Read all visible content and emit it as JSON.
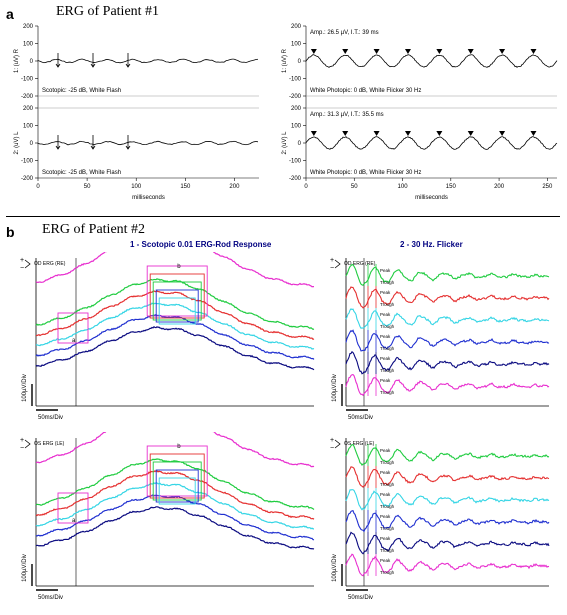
{
  "panel_a": {
    "letter": "a",
    "title": "ERG of Patient #1",
    "title_fontsize": 14,
    "letter_fontsize": 14,
    "left_plots": {
      "xlim": [
        0,
        225
      ],
      "ylim": [
        -200,
        200
      ],
      "xtick_step": 50,
      "ytick_step": 100,
      "xlabel": "milliseconds",
      "ylabels": [
        "1: (uV) R",
        "2: (uV) L"
      ],
      "legend_top": "Scotopic: -25 dB, White Flash",
      "legend_bottom": "Scotopic: -25 dB, White Flash",
      "trace_color": "#000000",
      "grid_color": "#c0c0c0",
      "background": "#ffffff",
      "axis_fontsize": 6,
      "label_fontsize": 6
    },
    "right_plots": {
      "xlim": [
        0,
        260
      ],
      "ylim": [
        -200,
        200
      ],
      "xtick_step": 50,
      "ytick_step": 100,
      "xlabel": "milliseconds",
      "ylabels": [
        "1: (uV) R",
        "2: (uV) L"
      ],
      "ann_top": "Amp.: 26.5 µV, I.T.: 39 ms",
      "legend_top": "White Photopic:  0 dB, White Flicker 30 Hz",
      "ann_bottom": "Amp.: 31.3 µV, I.T.: 35.5 ms",
      "legend_bottom": "White Photopic:  0 dB, White Flicker 30 Hz",
      "trace_color": "#000000",
      "grid_color": "#c0c0c0",
      "background": "#ffffff",
      "axis_fontsize": 6,
      "label_fontsize": 6
    }
  },
  "panel_b": {
    "letter": "b",
    "title": "ERG of Patient #2",
    "title_fontsize": 14,
    "letter_fontsize": 14,
    "left_title": "1 - Scotopic 0.01 ERG-Rod Response",
    "right_title": "2 - 30 Hz. Flicker",
    "subtitle_fontsize": 8,
    "series_colors": {
      "magenta": "#e82fcf",
      "green": "#20cc40",
      "red": "#e53030",
      "cyan": "#35d5e5",
      "blue": "#2030d0",
      "navy": "#0a0a80"
    },
    "marker_box_color": "#e82fcf",
    "grid_color": "#000000",
    "scale_label_x": "50ms/Div",
    "scale_label_y": "100µV/Div",
    "channel_top": "OD ERG (RE)",
    "channel_bottom": "OS ERG (LE)",
    "peak_label": "Peak",
    "trough_label": "Trough",
    "background": "#ffffff"
  }
}
